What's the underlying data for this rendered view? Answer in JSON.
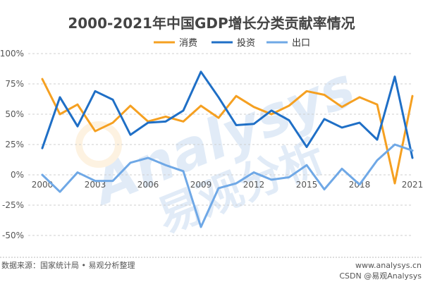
{
  "chart_data": {
    "type": "line",
    "title": "2000-2021年中国GDP增长分类贡献率情况",
    "x": [
      2000,
      2001,
      2002,
      2003,
      2004,
      2005,
      2006,
      2007,
      2008,
      2009,
      2010,
      2011,
      2012,
      2013,
      2014,
      2015,
      2016,
      2017,
      2018,
      2019,
      2020,
      2021
    ],
    "x_tick_labels": [
      "2000",
      "2003",
      "2006",
      "2009",
      "2012",
      "2015",
      "2018",
      "2021"
    ],
    "y_ticks": [
      "100%",
      "75%",
      "50%",
      "25%",
      "0%",
      "-25%",
      "-50%"
    ],
    "ylim": [
      -50,
      100
    ],
    "grid": "horizontal dashed",
    "legend_position": "top-center",
    "series": [
      {
        "name": "消费",
        "color": "#f5a021",
        "values": [
          79,
          50,
          58,
          36,
          43,
          57,
          44,
          48,
          44,
          57,
          47,
          65,
          56,
          50,
          57,
          69,
          66,
          56,
          64,
          58,
          -7,
          65
        ]
      },
      {
        "name": "投资",
        "color": "#1f6fc6",
        "values": [
          22,
          64,
          40,
          69,
          62,
          33,
          43,
          44,
          53,
          85,
          64,
          41,
          42,
          53,
          45,
          23,
          46,
          39,
          43,
          29,
          81,
          14
        ]
      },
      {
        "name": "出口",
        "color": "#6fa8e6",
        "values": [
          0,
          -14,
          2,
          -5,
          -5,
          10,
          14,
          8,
          3,
          -43,
          -11,
          -7,
          2,
          -4,
          -2,
          8,
          -12,
          5,
          -8,
          12,
          25,
          20
        ]
      }
    ]
  },
  "watermark": {
    "main": "易观分析",
    "en": "Analysys",
    "url": "www.analysys.cn"
  },
  "footer": {
    "source": "数据来源：国家统计局 • 易观分析整理",
    "credit": "CSDN @易观Analysys"
  }
}
